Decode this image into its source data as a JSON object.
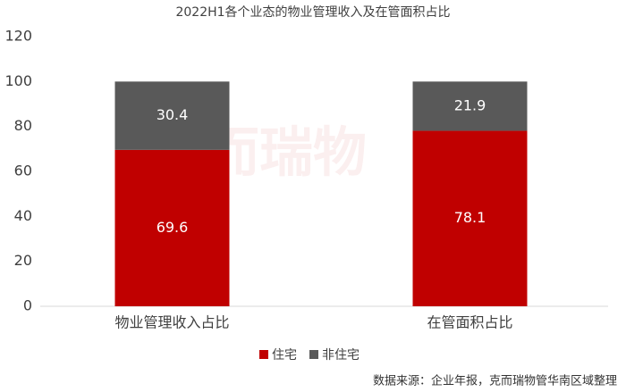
{
  "chart_data": {
    "type": "stacked_bar",
    "title": "2022H1各个业态的物业管理收入及在管面积占比",
    "categories": [
      "物业管理收入占比",
      "在管面积占比"
    ],
    "series": [
      {
        "name": "住宅",
        "color": "#c00000",
        "values": [
          69.6,
          78.1
        ]
      },
      {
        "name": "非住宅",
        "color": "#595959",
        "values": [
          30.4,
          21.9
        ]
      }
    ],
    "ylim": [
      0,
      120
    ],
    "yticks": [
      0,
      20,
      40,
      60,
      80,
      100,
      120
    ],
    "grid": false,
    "legend": "bottom",
    "watermark": "克而瑞物",
    "source": "数据来源：企业年报，克而瑞物管华南区域整理"
  }
}
